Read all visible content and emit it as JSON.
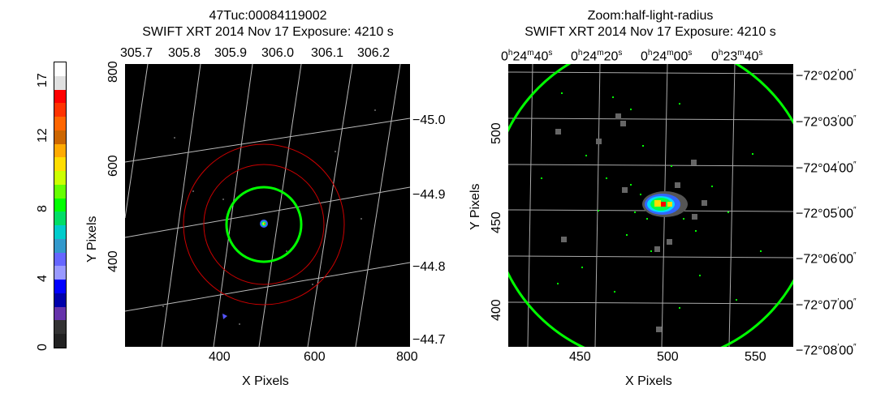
{
  "colorbar": {
    "labels": [
      "0",
      "4",
      "8",
      "12",
      "17"
    ],
    "colors": [
      "#ffffff",
      "#e0e0e0",
      "#ff0000",
      "#ff3300",
      "#ff6600",
      "#cc6600",
      "#ffaa00",
      "#ffdd00",
      "#ccff00",
      "#66ff00",
      "#00ff00",
      "#00dd66",
      "#00cccc",
      "#3399cc",
      "#6666ff",
      "#9999ff",
      "#0000ff",
      "#0000aa",
      "#6633aa",
      "#333333",
      "#222222"
    ]
  },
  "left": {
    "title1": "47Tuc:00084119002",
    "title2": "SWIFT XRT   2014 Nov 17     Exposure: 4210 s",
    "xlabel": "X Pixels",
    "ylabel": "Y Pixels",
    "xticks": [
      "400",
      "600",
      "800"
    ],
    "yticks": [
      "400",
      "600",
      "800"
    ],
    "top_ticks": [
      "305.7",
      "305.8",
      "305.9",
      "306.0",
      "306.1",
      "306.2"
    ],
    "right_ticks": [
      "−45.0",
      "−44.9",
      "−44.8",
      "−44.7"
    ],
    "circle_color": "#00ff00",
    "red_circle_color": "#cc0000"
  },
  "right": {
    "title1": "Zoom:half-light-radius",
    "title2": "SWIFT XRT   2014 Nov 17     Exposure: 4210 s",
    "xlabel": "X Pixels",
    "ylabel": "Y Pixels",
    "xticks": [
      "450",
      "500",
      "550"
    ],
    "yticks": [
      "400",
      "450",
      "500"
    ],
    "top_ticks": [
      {
        "h": "0",
        "m": "24",
        "s": "40"
      },
      {
        "h": "0",
        "m": "24",
        "s": "20"
      },
      {
        "h": "0",
        "m": "24",
        "s": "00"
      },
      {
        "h": "0",
        "m": "23",
        "s": "40"
      }
    ],
    "right_ticks": [
      {
        "d": "−72°",
        "m": "02",
        "s": "00"
      },
      {
        "d": "−72°",
        "m": "03",
        "s": "00"
      },
      {
        "d": "−72°",
        "m": "04",
        "s": "00"
      },
      {
        "d": "−72°",
        "m": "05",
        "s": "00"
      },
      {
        "d": "−72°",
        "m": "06",
        "s": "00"
      },
      {
        "d": "−72°",
        "m": "07",
        "s": "00"
      },
      {
        "d": "−72°",
        "m": "08",
        "s": "00"
      }
    ]
  }
}
